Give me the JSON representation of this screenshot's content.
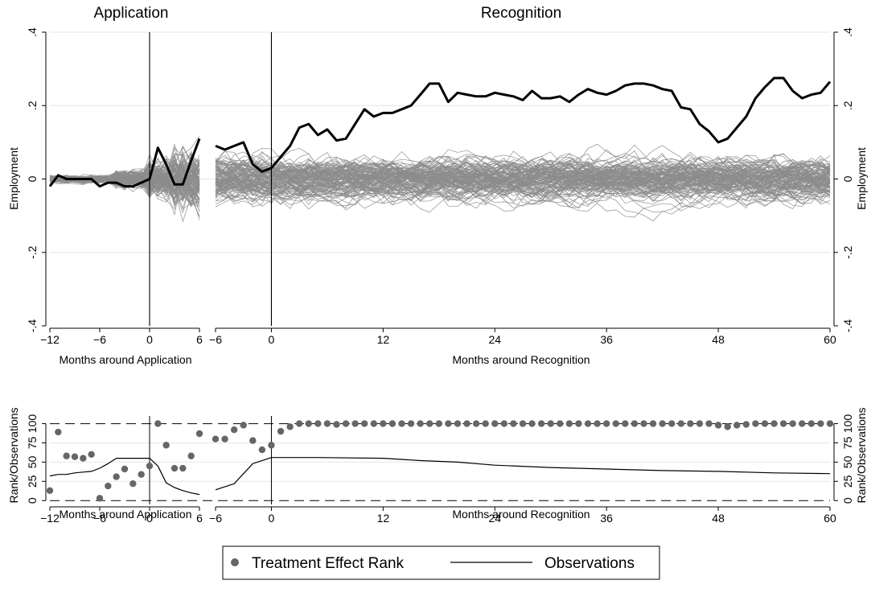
{
  "chart_data": [
    {
      "type": "line",
      "titles": [
        "Application",
        "Recognition"
      ],
      "ylabel": "Employment",
      "ylim": [
        -0.4,
        0.4
      ],
      "yticks": [
        {
          "value": -0.4,
          "label": "-.4"
        },
        {
          "value": -0.2,
          "label": "-.2"
        },
        {
          "value": 0,
          "label": "0"
        },
        {
          "value": 0.2,
          "label": ".2"
        },
        {
          "value": 0.4,
          "label": ".4"
        }
      ],
      "grid": true,
      "application": {
        "xlabel": "Months around Application",
        "xlim": [
          -12,
          6
        ],
        "xticks": [
          {
            "value": -12,
            "label": "−12"
          },
          {
            "value": -6,
            "label": "−6"
          },
          {
            "value": 0,
            "label": "0"
          },
          {
            "value": 6,
            "label": "6"
          }
        ],
        "vline": 0,
        "treated": {
          "x": [
            -12,
            -11,
            -10,
            -9,
            -8,
            -7,
            -6,
            -5,
            -4,
            -3,
            -2,
            -1,
            0,
            1,
            2,
            3,
            4,
            5,
            6
          ],
          "y": [
            -0.02,
            0.01,
            0.0,
            0.0,
            0.0,
            0.0,
            -0.02,
            -0.01,
            -0.01,
            -0.02,
            -0.02,
            -0.01,
            0.0,
            0.085,
            0.04,
            -0.015,
            -0.015,
            0.05,
            0.11
          ]
        },
        "placebo_count": 120
      },
      "recognition": {
        "xlabel": "Months around Recognition",
        "xlim": [
          -6,
          60
        ],
        "xticks": [
          {
            "value": -6,
            "label": "−6"
          },
          {
            "value": 0,
            "label": "0"
          },
          {
            "value": 12,
            "label": "12"
          },
          {
            "value": 24,
            "label": "24"
          },
          {
            "value": 36,
            "label": "36"
          },
          {
            "value": 48,
            "label": "48"
          },
          {
            "value": 60,
            "label": "60"
          }
        ],
        "vline": 0,
        "treated": {
          "x": [
            -6,
            -5,
            -4,
            -3,
            -2,
            -1,
            0,
            1,
            2,
            3,
            4,
            5,
            6,
            7,
            8,
            9,
            10,
            11,
            12,
            13,
            14,
            15,
            16,
            17,
            18,
            19,
            20,
            21,
            22,
            23,
            24,
            25,
            26,
            27,
            28,
            29,
            30,
            31,
            32,
            33,
            34,
            35,
            36,
            37,
            38,
            39,
            40,
            41,
            42,
            43,
            44,
            45,
            46,
            47,
            48,
            49,
            50,
            51,
            52,
            53,
            54,
            55,
            56,
            57,
            58,
            59,
            60
          ],
          "y": [
            0.09,
            0.08,
            0.09,
            0.1,
            0.04,
            0.02,
            0.03,
            0.06,
            0.09,
            0.14,
            0.15,
            0.12,
            0.135,
            0.105,
            0.11,
            0.15,
            0.19,
            0.17,
            0.18,
            0.18,
            0.19,
            0.2,
            0.23,
            0.26,
            0.26,
            0.21,
            0.235,
            0.23,
            0.225,
            0.225,
            0.235,
            0.23,
            0.225,
            0.215,
            0.24,
            0.22,
            0.22,
            0.225,
            0.21,
            0.23,
            0.245,
            0.235,
            0.23,
            0.24,
            0.255,
            0.26,
            0.26,
            0.255,
            0.245,
            0.24,
            0.195,
            0.19,
            0.15,
            0.13,
            0.1,
            0.11,
            0.14,
            0.17,
            0.22,
            0.25,
            0.275,
            0.275,
            0.24,
            0.22,
            0.23,
            0.235,
            0.265
          ]
        },
        "placebo_count": 120
      },
      "placebo_color": "#8c8c8c",
      "treated_color": "#000000"
    },
    {
      "type": "scatter",
      "ylabel": "Rank/Observations",
      "ylim": [
        -5,
        110
      ],
      "yticks": [
        {
          "value": 0,
          "label": "0"
        },
        {
          "value": 25,
          "label": "25"
        },
        {
          "value": 50,
          "label": "50"
        },
        {
          "value": 75,
          "label": "75"
        },
        {
          "value": 100,
          "label": "100"
        }
      ],
      "hlines_dashed": [
        0,
        100
      ],
      "application": {
        "xlabel": "Months around Application",
        "xlim": [
          -12,
          6
        ],
        "xticks": [
          {
            "value": -12,
            "label": "−12"
          },
          {
            "value": -6,
            "label": "−6"
          },
          {
            "value": 0,
            "label": "0"
          },
          {
            "value": 6,
            "label": "6"
          }
        ],
        "rank": {
          "x": [
            -12,
            -11,
            -10,
            -9,
            -8,
            -7,
            -6,
            -5,
            -4,
            -3,
            -2,
            -1,
            0,
            1,
            2,
            3,
            4,
            5,
            6
          ],
          "y": [
            13,
            89,
            58,
            57,
            55,
            60,
            3,
            19,
            31,
            41,
            22,
            34,
            45,
            100,
            72,
            42,
            42,
            58,
            87
          ]
        },
        "observations": {
          "x": [
            -12,
            -11,
            -10,
            -9,
            -8,
            -7,
            -6,
            -5,
            -4,
            -3,
            -2,
            -1,
            0,
            1,
            2,
            3,
            4,
            5,
            6
          ],
          "y": [
            32,
            34,
            34,
            36,
            37,
            38,
            42,
            48,
            55,
            55,
            55,
            55,
            55,
            45,
            23,
            17,
            13,
            10,
            8
          ]
        }
      },
      "recognition": {
        "xlabel": "Months around Recognition",
        "xlim": [
          -6,
          60
        ],
        "xticks": [
          {
            "value": -6,
            "label": "−6"
          },
          {
            "value": 0,
            "label": "0"
          },
          {
            "value": 12,
            "label": "12"
          },
          {
            "value": 24,
            "label": "24"
          },
          {
            "value": 36,
            "label": "36"
          },
          {
            "value": 48,
            "label": "48"
          },
          {
            "value": 60,
            "label": "60"
          }
        ],
        "rank": {
          "x": [
            -6,
            -5,
            -4,
            -3,
            -2,
            -1,
            0,
            1,
            2,
            3,
            4,
            5,
            6,
            7,
            8,
            9,
            10,
            11,
            12,
            13,
            14,
            15,
            16,
            17,
            18,
            19,
            20,
            21,
            22,
            23,
            24,
            25,
            26,
            27,
            28,
            29,
            30,
            31,
            32,
            33,
            34,
            35,
            36,
            37,
            38,
            39,
            40,
            41,
            42,
            43,
            44,
            45,
            46,
            47,
            48,
            49,
            50,
            51,
            52,
            53,
            54,
            55,
            56,
            57,
            58,
            59,
            60
          ],
          "y": [
            80,
            80,
            92,
            98,
            78,
            66,
            72,
            90,
            96,
            100,
            100,
            100,
            100,
            99,
            100,
            100,
            100,
            100,
            100,
            100,
            100,
            100,
            100,
            100,
            100,
            100,
            100,
            100,
            100,
            100,
            100,
            100,
            100,
            100,
            100,
            100,
            100,
            100,
            100,
            100,
            100,
            100,
            100,
            100,
            100,
            100,
            100,
            100,
            100,
            100,
            100,
            100,
            100,
            100,
            98,
            96,
            98,
            99,
            100,
            100,
            100,
            100,
            100,
            100,
            100,
            100,
            100
          ]
        },
        "observations": {
          "x": [
            -6,
            -4,
            -2,
            0,
            5,
            12,
            16,
            20,
            24,
            30,
            36,
            42,
            48,
            54,
            60
          ],
          "y": [
            14,
            22,
            48,
            56,
            56,
            55,
            52,
            50,
            46,
            43,
            41,
            39,
            38,
            36,
            35
          ]
        }
      },
      "rank_color": "#666666",
      "obs_color": "#000000"
    }
  ],
  "legend": {
    "placement": "bottom-center",
    "items": [
      {
        "label": "Treatment Effect Rank",
        "marker": "dot"
      },
      {
        "label": "Observations",
        "marker": "line"
      }
    ]
  }
}
